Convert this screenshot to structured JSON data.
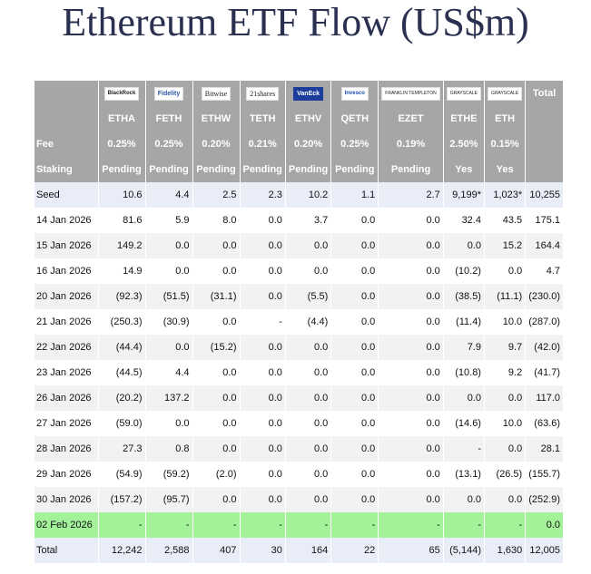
{
  "title": "Ethereum ETF Flow (US$m)",
  "logos": [
    "BlackRock",
    "Fidelity",
    "Bitwise",
    "21shares",
    "VanEck",
    "Invesco",
    "FRANKLIN TEMPLETON",
    "GRAYSCALE",
    "GRAYSCALE"
  ],
  "total_header": "Total",
  "tickers": [
    "ETHA",
    "FETH",
    "ETHW",
    "TETH",
    "ETHV",
    "QETH",
    "EZET",
    "ETHE",
    "ETH"
  ],
  "fee_label": "Fee",
  "fees": [
    "0.25%",
    "0.25%",
    "0.20%",
    "0.21%",
    "0.20%",
    "0.25%",
    "0.19%",
    "2.50%",
    "0.15%"
  ],
  "staking_label": "Staking",
  "staking": [
    "Pending",
    "Pending",
    "Pending",
    "Pending",
    "Pending",
    "Pending",
    "Pending",
    "Yes",
    "Yes"
  ],
  "rows": [
    {
      "label": "Seed",
      "values": [
        "10.6",
        "4.4",
        "2.5",
        "2.3",
        "10.2",
        "1.1",
        "2.7",
        "9,199*",
        "1,023*",
        "10,255"
      ]
    },
    {
      "label": "14 Jan 2026",
      "values": [
        "81.6",
        "5.9",
        "8.0",
        "0.0",
        "3.7",
        "0.0",
        "0.0",
        "32.4",
        "43.5",
        "175.1"
      ]
    },
    {
      "label": "15 Jan 2026",
      "values": [
        "149.2",
        "0.0",
        "0.0",
        "0.0",
        "0.0",
        "0.0",
        "0.0",
        "0.0",
        "15.2",
        "164.4"
      ]
    },
    {
      "label": "16 Jan 2026",
      "values": [
        "14.9",
        "0.0",
        "0.0",
        "0.0",
        "0.0",
        "0.0",
        "0.0",
        "(10.2)",
        "0.0",
        "4.7"
      ]
    },
    {
      "label": "20 Jan 2026",
      "values": [
        "(92.3)",
        "(51.5)",
        "(31.1)",
        "0.0",
        "(5.5)",
        "0.0",
        "0.0",
        "(38.5)",
        "(11.1)",
        "(230.0)"
      ]
    },
    {
      "label": "21 Jan 2026",
      "values": [
        "(250.3)",
        "(30.9)",
        "0.0",
        "-",
        "(4.4)",
        "0.0",
        "0.0",
        "(11.4)",
        "10.0",
        "(287.0)"
      ]
    },
    {
      "label": "22 Jan 2026",
      "values": [
        "(44.4)",
        "0.0",
        "(15.2)",
        "0.0",
        "0.0",
        "0.0",
        "0.0",
        "7.9",
        "9.7",
        "(42.0)"
      ]
    },
    {
      "label": "23 Jan 2026",
      "values": [
        "(44.5)",
        "4.4",
        "0.0",
        "0.0",
        "0.0",
        "0.0",
        "0.0",
        "(10.8)",
        "9.2",
        "(41.7)"
      ]
    },
    {
      "label": "26 Jan 2026",
      "values": [
        "(20.2)",
        "137.2",
        "0.0",
        "0.0",
        "0.0",
        "0.0",
        "0.0",
        "0.0",
        "0.0",
        "117.0"
      ]
    },
    {
      "label": "27 Jan 2026",
      "values": [
        "(59.0)",
        "0.0",
        "0.0",
        "0.0",
        "0.0",
        "0.0",
        "0.0",
        "(14.6)",
        "10.0",
        "(63.6)"
      ]
    },
    {
      "label": "28 Jan 2026",
      "values": [
        "27.3",
        "0.8",
        "0.0",
        "0.0",
        "0.0",
        "0.0",
        "0.0",
        "-",
        "0.0",
        "28.1"
      ]
    },
    {
      "label": "29 Jan 2026",
      "values": [
        "(54.9)",
        "(59.2)",
        "(2.0)",
        "0.0",
        "0.0",
        "0.0",
        "0.0",
        "(13.1)",
        "(26.5)",
        "(155.7)"
      ]
    },
    {
      "label": "30 Jan 2026",
      "values": [
        "(157.2)",
        "(95.7)",
        "0.0",
        "0.0",
        "0.0",
        "0.0",
        "0.0",
        "0.0",
        "0.0",
        "(252.9)"
      ]
    },
    {
      "label": "02 Feb 2026",
      "values": [
        "-",
        "-",
        "-",
        "-",
        "-",
        "-",
        "-",
        "-",
        "-",
        "0.0"
      ]
    },
    {
      "label": "Total",
      "values": [
        "12,242",
        "2,588",
        "407",
        "30",
        "164",
        "22",
        "65",
        "(5,144)",
        "1,630",
        "12,005"
      ]
    }
  ],
  "colors": {
    "header_bg": "#a6a6a6",
    "seed_bg": "#e8edf7",
    "alt_bg": "#f2f2f2",
    "highlight_bg": "#a3f29a",
    "negative": "#d22a2a",
    "title": "#2a3050"
  }
}
